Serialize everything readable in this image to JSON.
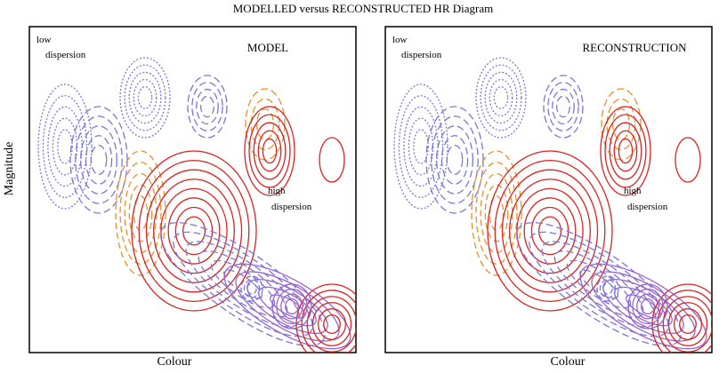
{
  "title": "MODELLED versus RECONSTRUCTED HR Diagram",
  "y_label": "Magnitude",
  "panels": [
    {
      "label": "MODEL",
      "x_label": "Colour",
      "low": [
        "low",
        "dispersion"
      ],
      "high": [
        "high",
        "dispersion"
      ]
    },
    {
      "label": "RECONSTRUCTION",
      "x_label": "Colour",
      "low": [
        "low",
        "dispersion"
      ],
      "high": [
        "high",
        "dispersion"
      ]
    }
  ]
}
